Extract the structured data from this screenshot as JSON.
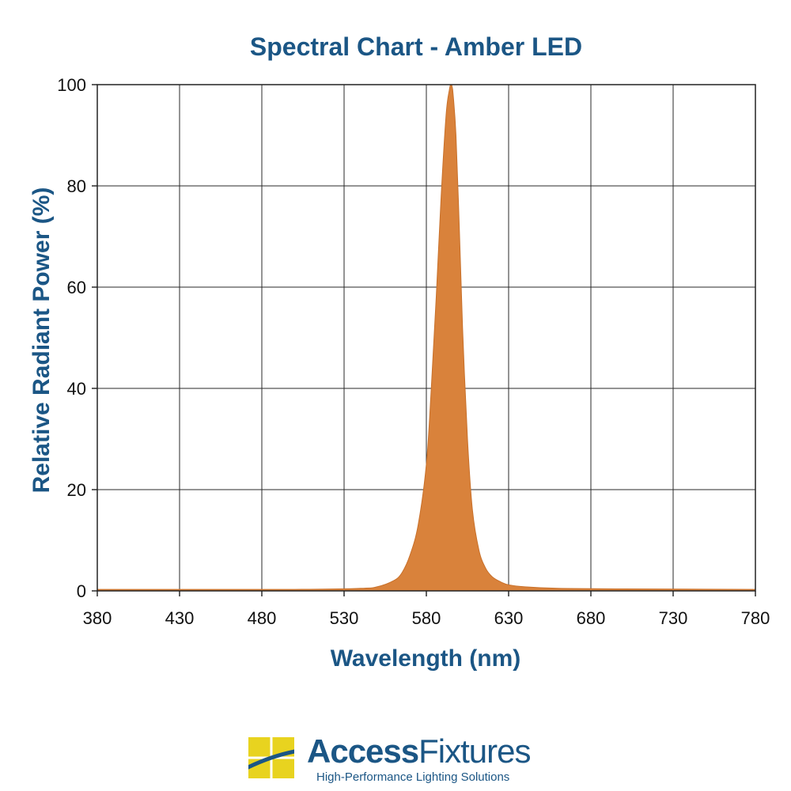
{
  "chart_data": {
    "type": "area",
    "title": "Spectral Chart - Amber LED",
    "xlabel": "Wavelength (nm)",
    "ylabel": "Relative Radiant Power (%)",
    "xlim": [
      380,
      780
    ],
    "ylim": [
      0,
      100
    ],
    "xticks": [
      380,
      430,
      480,
      530,
      580,
      630,
      680,
      730,
      780
    ],
    "yticks": [
      0,
      20,
      40,
      60,
      80,
      100
    ],
    "grid": true,
    "fill_color": "#d9823b",
    "x": [
      380,
      500,
      540,
      550,
      560,
      565,
      570,
      575,
      580,
      583,
      586,
      589,
      592,
      594,
      595,
      596,
      598,
      600,
      602,
      605,
      608,
      612,
      616,
      620,
      625,
      630,
      640,
      660,
      700,
      780
    ],
    "y": [
      0.3,
      0.3,
      0.5,
      0.8,
      2,
      3.5,
      7,
      13,
      25,
      40,
      58,
      78,
      94,
      99,
      100,
      99,
      90,
      72,
      52,
      30,
      16,
      8,
      4.5,
      2.8,
      1.8,
      1.2,
      0.8,
      0.5,
      0.4,
      0.3
    ]
  },
  "logo": {
    "name_bold": "Access",
    "name_light": "Fixtures",
    "tagline": "High-Performance Lighting Solutions",
    "mark_color": "#e8d31f",
    "text_color": "#1b5685"
  }
}
